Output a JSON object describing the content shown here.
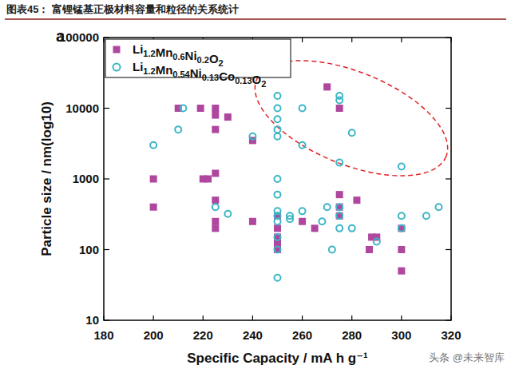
{
  "chart_data": {
    "type": "scatter",
    "title": "图表45：  富锂锰基正极材料容量和粒径的关系统计",
    "panel_label": "a",
    "x_label": "Specific Capacity / mA h g⁻¹",
    "y_label": "Particle size / nm(log10)",
    "watermark": "头条 @未来智库",
    "log": "y",
    "legend": "upper left",
    "grid": false,
    "xlim": [
      180,
      320
    ],
    "xticks": [
      180,
      200,
      220,
      240,
      260,
      280,
      300,
      320
    ],
    "ylim": [
      10,
      100000
    ],
    "yticks": [
      10,
      100,
      1000,
      10000,
      100000
    ],
    "series": [
      {
        "name": "Li1.2Mn0.6Ni0.2O2",
        "color": "#b0479f",
        "marker": "square",
        "x": [
          200,
          200,
          210,
          219,
          220,
          222,
          225,
          225,
          225,
          225,
          225,
          225,
          225,
          230,
          240,
          240,
          250,
          250,
          250,
          250,
          250,
          260,
          265,
          270,
          275,
          275,
          275,
          275,
          282,
          287,
          288,
          290,
          300,
          300,
          300
        ],
        "values": [
          1000,
          400,
          10000,
          10000,
          1000,
          1000,
          10000,
          8000,
          5000,
          1200,
          500,
          250,
          200,
          7500,
          3500,
          250,
          300,
          200,
          150,
          120,
          100,
          250,
          200,
          20000,
          10000,
          600,
          400,
          300,
          500,
          100,
          150,
          150,
          200,
          100,
          50
        ]
      },
      {
        "name": "Li1.2Mn0.54Ni0.13Co0.13O2",
        "color": "#3db5c6",
        "marker": "circle-open",
        "x": [
          200,
          210,
          212,
          225,
          230,
          240,
          250,
          250,
          250,
          250,
          250,
          250,
          250,
          250,
          250,
          250,
          250,
          250,
          250,
          255,
          255,
          260,
          260,
          260,
          268,
          270,
          272,
          275,
          275,
          275,
          275,
          275,
          275,
          280,
          280,
          290,
          300,
          300,
          300,
          310,
          315
        ],
        "values": [
          3000,
          5000,
          10000,
          400,
          320,
          4000,
          15000,
          10000,
          7000,
          5000,
          4000,
          1000,
          600,
          350,
          300,
          250,
          150,
          100,
          40,
          300,
          270,
          10000,
          3000,
          350,
          250,
          400,
          100,
          15000,
          13000,
          1700,
          400,
          300,
          200,
          4500,
          200,
          130,
          1500,
          300,
          200,
          300,
          400
        ]
      }
    ]
  }
}
